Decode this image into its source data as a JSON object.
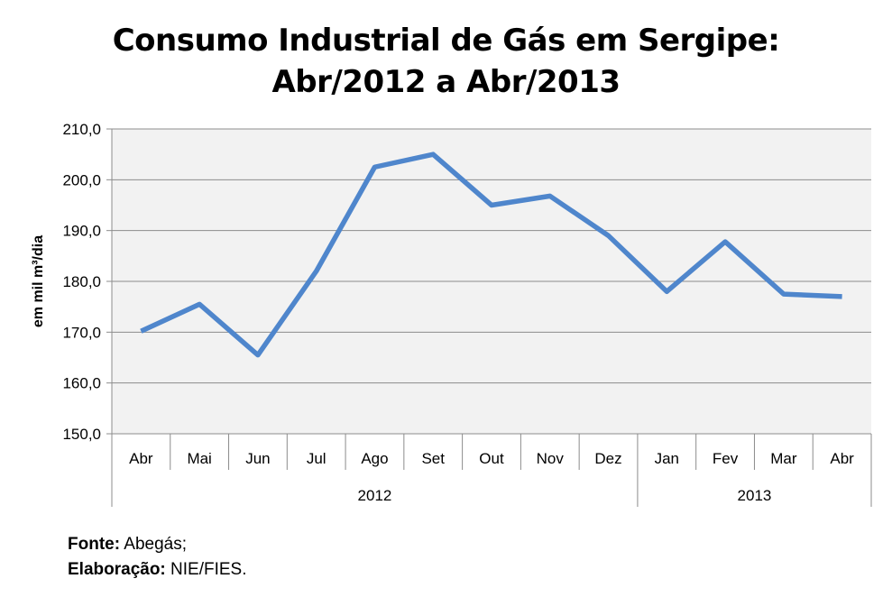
{
  "chart_data": {
    "type": "line",
    "title_line1": "Consumo Industrial de Gás em Sergipe:",
    "title_line2": "Abr/2012 a Abr/2013",
    "ylabel": "em mil m³/dia",
    "xlabel": "",
    "ylim": [
      150,
      210
    ],
    "yticks": [
      "150,0",
      "160,0",
      "170,0",
      "180,0",
      "190,0",
      "200,0",
      "210,0"
    ],
    "categories": [
      "Abr",
      "Mai",
      "Jun",
      "Jul",
      "Ago",
      "Set",
      "Out",
      "Nov",
      "Dez",
      "Jan",
      "Fev",
      "Mar",
      "Abr"
    ],
    "year_groups": [
      {
        "label": "2012",
        "count": 9
      },
      {
        "label": "2013",
        "count": 4
      }
    ],
    "series": [
      {
        "values": [
          170.2,
          175.5,
          165.5,
          182.0,
          202.5,
          205.0,
          195.0,
          196.8,
          189.0,
          178.0,
          187.8,
          177.5,
          177.0
        ],
        "color": "#4f86cc"
      }
    ],
    "grid": true,
    "plot_background": "#f2f2f2"
  },
  "footer": {
    "source_label": "Fonte:",
    "source_value": " Abegás;",
    "prep_label": "Elaboração:",
    "prep_value": "  NIE/FIES."
  }
}
